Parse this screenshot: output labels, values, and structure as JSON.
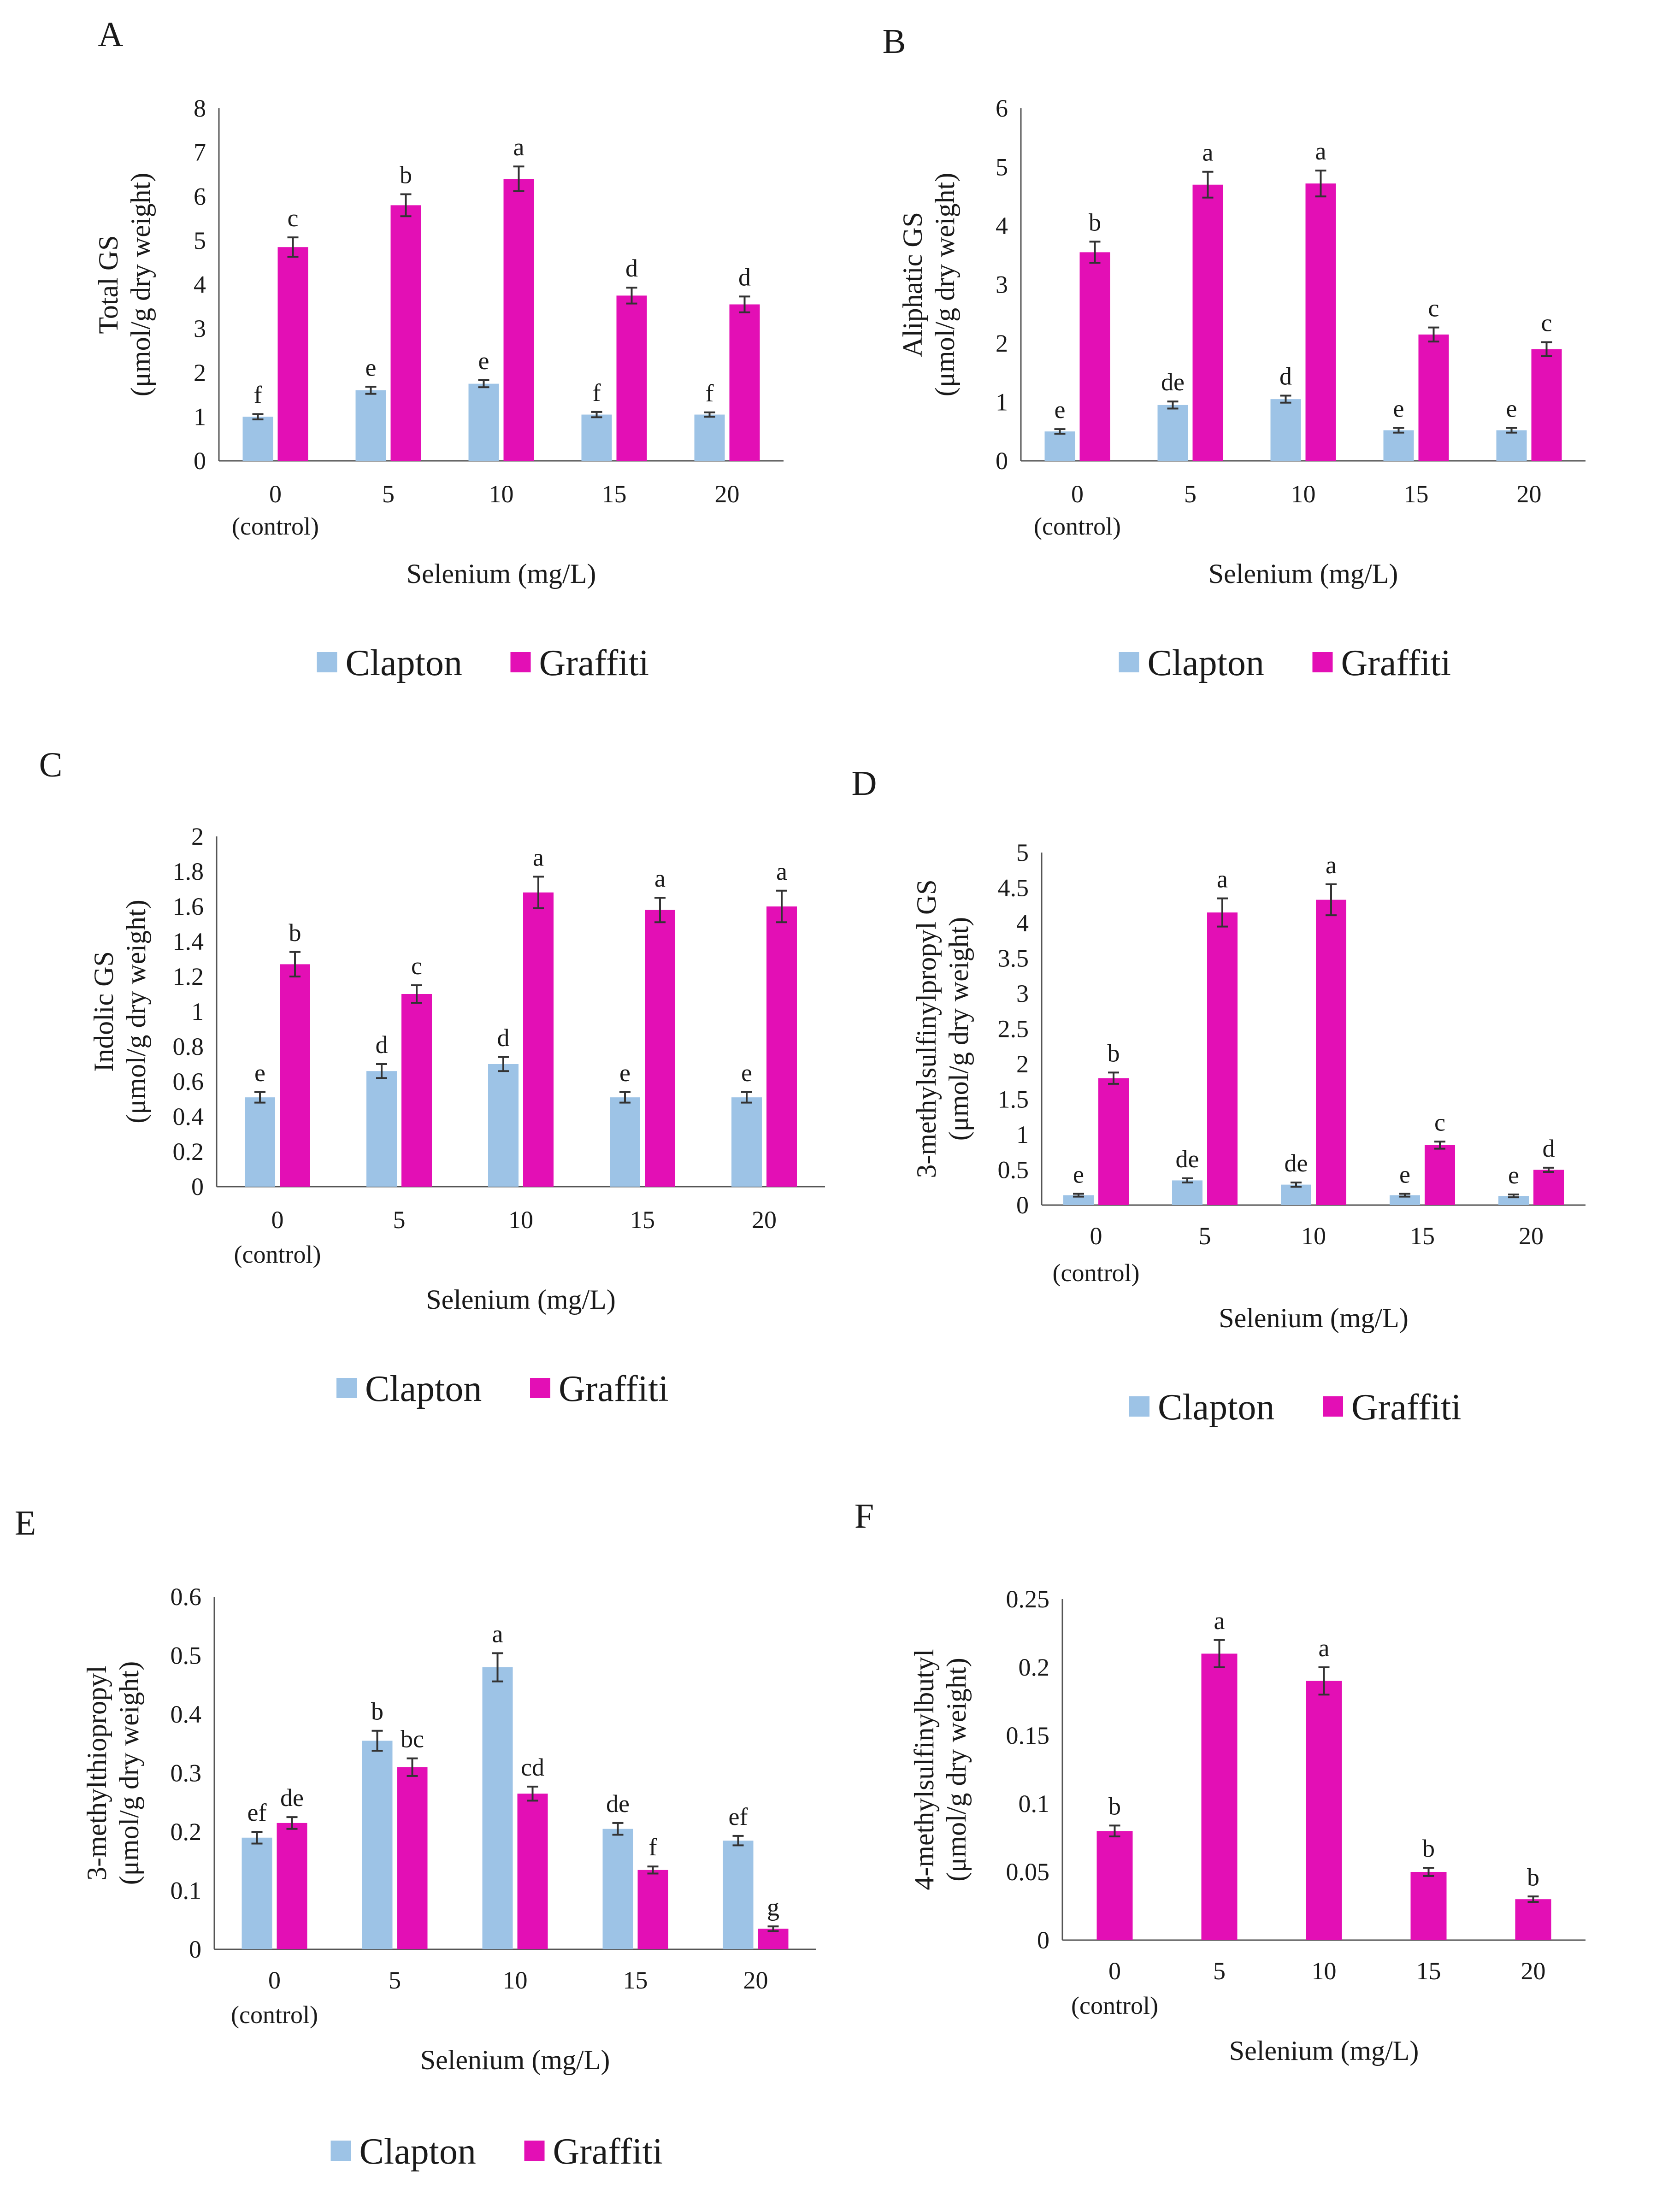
{
  "colors": {
    "Clapton": "#9dc3e6",
    "Graffiti": "#e30fb5"
  },
  "chart_data": [
    {
      "type": "bar",
      "panel": "A",
      "ylabel_lines": [
        "Total GS",
        "(μmol/g dry weight)"
      ],
      "xlabel": "Selenium (mg/L)",
      "categories": [
        "0",
        "5",
        "10",
        "15",
        "20"
      ],
      "category_sublabel": "(control)",
      "ylim": [
        0,
        8
      ],
      "yticks": [
        0,
        1,
        2,
        3,
        4,
        5,
        6,
        7,
        8
      ],
      "ytick_labels": [
        "0",
        "1",
        "2",
        "3",
        "4",
        "5",
        "6",
        "7",
        "8"
      ],
      "series": [
        {
          "name": "Clapton",
          "values": [
            1.0,
            1.6,
            1.75,
            1.05,
            1.05
          ],
          "errors": [
            0.06,
            0.08,
            0.08,
            0.06,
            0.05
          ],
          "letters": [
            "f",
            "e",
            "e",
            "f",
            "f"
          ]
        },
        {
          "name": "Graffiti",
          "values": [
            4.85,
            5.8,
            6.4,
            3.75,
            3.55
          ],
          "errors": [
            0.22,
            0.25,
            0.28,
            0.18,
            0.18
          ],
          "letters": [
            "c",
            "b",
            "a",
            "d",
            "d"
          ]
        }
      ],
      "legend": [
        "Clapton",
        "Graffiti"
      ]
    },
    {
      "type": "bar",
      "panel": "B",
      "ylabel_lines": [
        "Aliphatic GS",
        "(μmol/g dry weight)"
      ],
      "xlabel": "Selenium (mg/L)",
      "categories": [
        "0",
        "5",
        "10",
        "15",
        "20"
      ],
      "category_sublabel": "(control)",
      "ylim": [
        0,
        6
      ],
      "yticks": [
        0,
        1,
        2,
        3,
        4,
        5,
        6
      ],
      "ytick_labels": [
        "0",
        "1",
        "2",
        "3",
        "4",
        "5",
        "6"
      ],
      "series": [
        {
          "name": "Clapton",
          "values": [
            0.5,
            0.95,
            1.05,
            0.52,
            0.52
          ],
          "errors": [
            0.04,
            0.06,
            0.06,
            0.04,
            0.04
          ],
          "letters": [
            "e",
            "de",
            "d",
            "e",
            "e"
          ]
        },
        {
          "name": "Graffiti",
          "values": [
            3.55,
            4.7,
            4.72,
            2.15,
            1.9
          ],
          "errors": [
            0.18,
            0.22,
            0.22,
            0.12,
            0.12
          ],
          "letters": [
            "b",
            "a",
            "a",
            "c",
            "c"
          ]
        }
      ],
      "legend": [
        "Clapton",
        "Graffiti"
      ]
    },
    {
      "type": "bar",
      "panel": "C",
      "ylabel_lines": [
        "Indolic GS",
        "(μmol/g dry weight)"
      ],
      "xlabel": "Selenium (mg/L)",
      "categories": [
        "0",
        "5",
        "10",
        "15",
        "20"
      ],
      "category_sublabel": "(control)",
      "ylim": [
        0,
        2
      ],
      "yticks": [
        0,
        0.2,
        0.4,
        0.6,
        0.8,
        1,
        1.2,
        1.4,
        1.6,
        1.8,
        2
      ],
      "ytick_labels": [
        "0",
        "0.2",
        "0.4",
        "0.6",
        "0.8",
        "1",
        "1.2",
        "1.4",
        "1.6",
        "1.8",
        "2"
      ],
      "series": [
        {
          "name": "Clapton",
          "values": [
            0.51,
            0.66,
            0.7,
            0.51,
            0.51
          ],
          "errors": [
            0.03,
            0.04,
            0.04,
            0.03,
            0.03
          ],
          "letters": [
            "e",
            "d",
            "d",
            "e",
            "e"
          ]
        },
        {
          "name": "Graffiti",
          "values": [
            1.27,
            1.1,
            1.68,
            1.58,
            1.6
          ],
          "errors": [
            0.07,
            0.05,
            0.09,
            0.07,
            0.09
          ],
          "letters": [
            "b",
            "c",
            "a",
            "a",
            "a"
          ]
        }
      ],
      "legend": [
        "Clapton",
        "Graffiti"
      ]
    },
    {
      "type": "bar",
      "panel": "D",
      "ylabel_lines": [
        "3-methylsulfinylpropyl GS",
        "(μmol/g dry weight)"
      ],
      "xlabel": "Selenium (mg/L)",
      "categories": [
        "0",
        "5",
        "10",
        "15",
        "20"
      ],
      "category_sublabel": "(control)",
      "ylim": [
        0,
        5
      ],
      "yticks": [
        0,
        0.5,
        1,
        1.5,
        2,
        2.5,
        3,
        3.5,
        4,
        4.5,
        5
      ],
      "ytick_labels": [
        "0",
        "0.5",
        "1",
        "1.5",
        "2",
        "2.5",
        "3",
        "3.5",
        "4",
        "4.5",
        "5"
      ],
      "series": [
        {
          "name": "Clapton",
          "values": [
            0.14,
            0.35,
            0.29,
            0.14,
            0.13
          ],
          "errors": [
            0.02,
            0.03,
            0.03,
            0.02,
            0.02
          ],
          "letters": [
            "e",
            "de",
            "de",
            "e",
            "e"
          ]
        },
        {
          "name": "Graffiti",
          "values": [
            1.8,
            4.15,
            4.33,
            0.85,
            0.5
          ],
          "errors": [
            0.08,
            0.2,
            0.22,
            0.05,
            0.03
          ],
          "letters": [
            "b",
            "a",
            "a",
            "c",
            "d"
          ]
        }
      ],
      "legend": [
        "Clapton",
        "Graffiti"
      ]
    },
    {
      "type": "bar",
      "panel": "E",
      "ylabel_lines": [
        "3-methylthiopropyl",
        "(μmol/g dry weight)"
      ],
      "xlabel": "Selenium (mg/L)",
      "categories": [
        "0",
        "5",
        "10",
        "15",
        "20"
      ],
      "category_sublabel": "(control)",
      "ylim": [
        0,
        0.6
      ],
      "yticks": [
        0,
        0.1,
        0.2,
        0.3,
        0.4,
        0.5,
        0.6
      ],
      "ytick_labels": [
        "0",
        "0.1",
        "0.2",
        "0.3",
        "0.4",
        "0.5",
        "0.6"
      ],
      "series": [
        {
          "name": "Clapton",
          "values": [
            0.19,
            0.355,
            0.48,
            0.205,
            0.185
          ],
          "errors": [
            0.01,
            0.017,
            0.024,
            0.01,
            0.008
          ],
          "letters": [
            "ef",
            "b",
            "a",
            "de",
            "ef"
          ]
        },
        {
          "name": "Graffiti",
          "values": [
            0.215,
            0.31,
            0.265,
            0.135,
            0.035
          ],
          "errors": [
            0.01,
            0.015,
            0.012,
            0.006,
            0.004
          ],
          "letters": [
            "de",
            "bc",
            "cd",
            "f",
            "g"
          ]
        }
      ],
      "legend": [
        "Clapton",
        "Graffiti"
      ]
    },
    {
      "type": "bar",
      "panel": "F",
      "ylabel_lines": [
        "4-methylsulfinylbutyl",
        "(μmol/g dry weight)"
      ],
      "xlabel": "Selenium (mg/L)",
      "categories": [
        "0",
        "5",
        "10",
        "15",
        "20"
      ],
      "category_sublabel": "(control)",
      "ylim": [
        0,
        0.25
      ],
      "yticks": [
        0,
        0.05,
        0.1,
        0.15,
        0.2,
        0.25
      ],
      "ytick_labels": [
        "0",
        "0.05",
        "0.1",
        "0.15",
        "0.2",
        "0.25"
      ],
      "series": [
        {
          "name": "Graffiti",
          "values": [
            0.08,
            0.21,
            0.19,
            0.05,
            0.03
          ],
          "errors": [
            0.004,
            0.01,
            0.01,
            0.003,
            0.002
          ],
          "letters": [
            "b",
            "a",
            "a",
            "b",
            "b"
          ]
        }
      ]
    }
  ]
}
